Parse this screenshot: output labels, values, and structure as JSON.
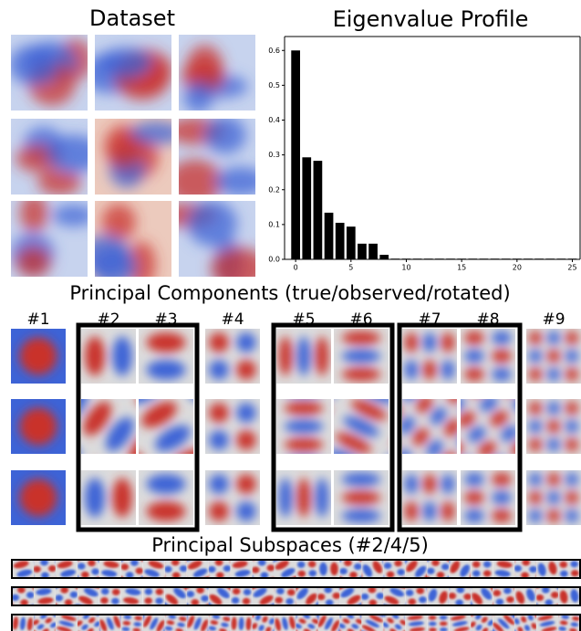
{
  "dataset_title": "Dataset",
  "components_title": "Principal Components (true/observed/rotated)",
  "component_labels": [
    "#1",
    "#2",
    "#3",
    "#4",
    "#5",
    "#6",
    "#7",
    "#8",
    "#9"
  ],
  "subspaces_title": "Principal Subspaces (#2/4/5)",
  "chart_data": {
    "type": "bar",
    "title": "Eigenvalue Profile",
    "x": [
      0,
      1,
      2,
      3,
      4,
      5,
      6,
      7,
      8,
      9,
      10,
      11,
      12,
      13,
      14,
      15,
      16,
      17,
      18,
      19,
      20,
      21,
      22,
      23,
      24,
      25
    ],
    "values": [
      0.6,
      0.293,
      0.283,
      0.134,
      0.105,
      0.094,
      0.045,
      0.045,
      0.013,
      0.002,
      0.002,
      0.002,
      0.002,
      0.002,
      0.002,
      0.002,
      0.002,
      0.002,
      0.002,
      0.002,
      0.002,
      0.002,
      0.002,
      0.002,
      0.002,
      0.002
    ],
    "color": "#000000",
    "xlim": [
      -1,
      25.7
    ],
    "xticks": [
      0,
      5,
      10,
      15,
      20,
      25
    ],
    "ylim": [
      0,
      0.64
    ],
    "yticks": [
      {
        "value": 0,
        "label": "0.0"
      },
      0.1,
      0.2,
      0.3,
      0.4,
      0.5,
      0.6
    ]
  }
}
